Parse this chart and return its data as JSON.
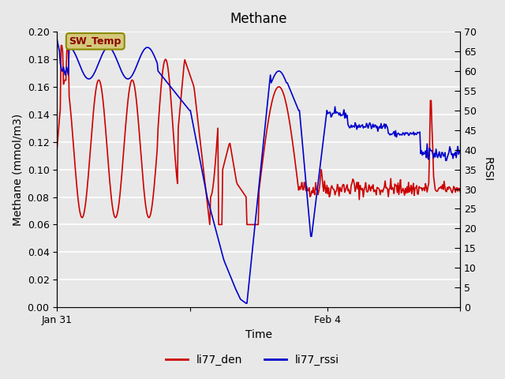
{
  "title": "Methane",
  "ylabel_left": "Methane (mmol/m3)",
  "ylabel_right": "RSSI",
  "xlabel": "Time",
  "ylim_left": [
    0.0,
    0.2
  ],
  "ylim_right": [
    0,
    70
  ],
  "yticks_left": [
    0.0,
    0.02,
    0.04,
    0.06,
    0.08,
    0.1,
    0.12,
    0.14,
    0.16,
    0.18,
    0.2
  ],
  "yticks_right": [
    0,
    5,
    10,
    15,
    20,
    25,
    30,
    35,
    40,
    45,
    50,
    55,
    60,
    65,
    70
  ],
  "xtick_positions": [
    0.0,
    0.33,
    0.67,
    1.0
  ],
  "xtick_labels": [
    "Jan 31",
    "",
    "Feb 4",
    ""
  ],
  "background_color": "#e8e8e8",
  "grid_color": "#ffffff",
  "color_red": "#cc0000",
  "color_blue": "#0000cc",
  "legend_label_red": "li77_den",
  "legend_label_blue": "li77_rssi",
  "annotation_text": "SW_Temp",
  "annotation_bg": "#d4c87a",
  "annotation_border": "#8b8b00"
}
